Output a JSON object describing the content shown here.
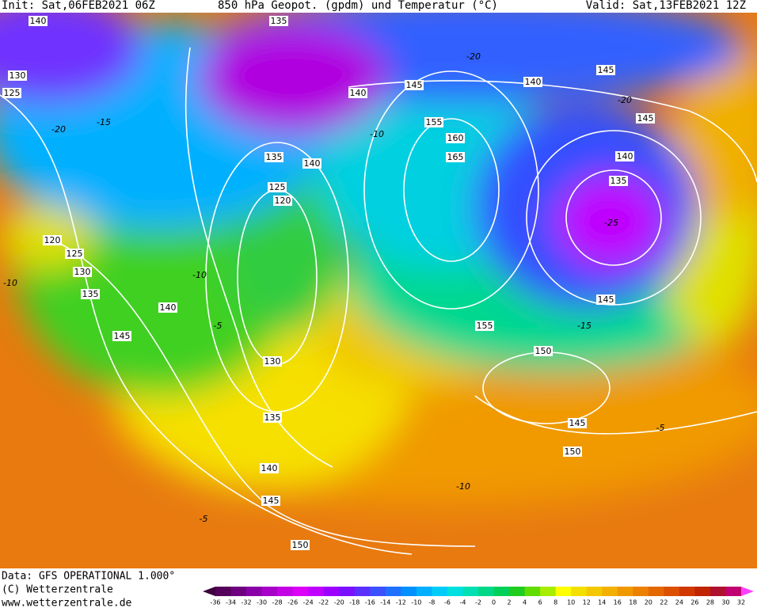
{
  "header": {
    "init": "Init: Sat,06FEB2021 06Z",
    "title": "850 hPa Geopot. (gpdm) und Temperatur (°C)",
    "valid": "Valid: Sat,13FEB2021 12Z"
  },
  "footer": {
    "data": "Data: GFS OPERATIONAL 1.000°",
    "copyright": "(C) Wetterzentrale",
    "url": "www.wetterzentrale.de"
  },
  "colorbar": {
    "labels": [
      -36,
      -34,
      -32,
      -30,
      -28,
      -26,
      -24,
      -22,
      -20,
      -18,
      -16,
      -14,
      -12,
      -10,
      -8,
      -6,
      -4,
      -2,
      0,
      2,
      4,
      6,
      8,
      10,
      12,
      14,
      16,
      18,
      20,
      22,
      24,
      26,
      28,
      30,
      32
    ],
    "colors": [
      "#3c003c",
      "#55005a",
      "#6e0080",
      "#8a00a8",
      "#a800c8",
      "#c400e4",
      "#dc00f8",
      "#c000ff",
      "#9c00ff",
      "#7a10ff",
      "#5a30ff",
      "#3c50ff",
      "#2070ff",
      "#0090ff",
      "#00b0ff",
      "#00ccf8",
      "#00e0e0",
      "#00e0b4",
      "#00d888",
      "#00d05a",
      "#20cc20",
      "#60dc00",
      "#a8ec00",
      "#ffff00",
      "#f4e000",
      "#f4c800",
      "#f4b000",
      "#f09800",
      "#ec8000",
      "#e46800",
      "#dc5000",
      "#d03800",
      "#c02400",
      "#b01030",
      "#c00070",
      "#ff40ff"
    ]
  },
  "geopotential_labels": [
    "140",
    "130",
    "125",
    "145",
    "140",
    "145",
    "155",
    "160",
    "165",
    "145",
    "140",
    "135",
    "135",
    "140",
    "125",
    "120",
    "120",
    "125",
    "130",
    "135",
    "140",
    "145",
    "130",
    "135",
    "140",
    "145",
    "150",
    "155",
    "150",
    "145",
    "150",
    "145",
    "140",
    "135"
  ],
  "temperature_labels": [
    "-20",
    "-15",
    "-10",
    "-10",
    "-5",
    "-10",
    "-20",
    "-20",
    "-25",
    "-15",
    "-5",
    "-5",
    "-10"
  ]
}
